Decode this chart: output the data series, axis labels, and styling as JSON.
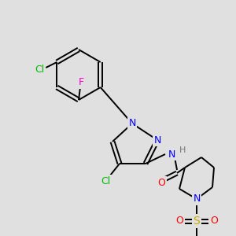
{
  "bg_color": "#e0e0e0",
  "bond_color": "#000000",
  "bond_width": 1.4,
  "figsize": [
    3.0,
    3.0
  ],
  "dpi": 100,
  "colors": {
    "F": "#ff00cc",
    "Cl": "#00bb00",
    "N": "#0000ff",
    "O": "#ff0000",
    "S": "#ccaa00",
    "H": "#777777",
    "C": "#000000"
  }
}
